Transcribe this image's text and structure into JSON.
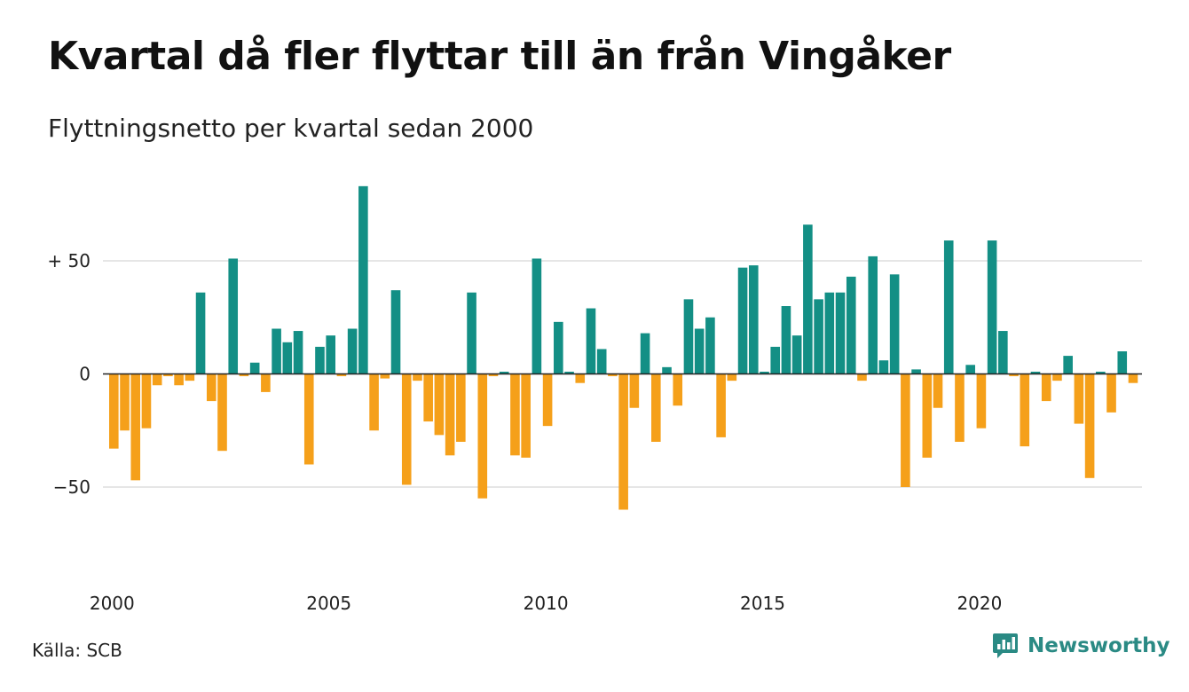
{
  "title": "Kvartal då fler flyttar till än från Vingåker",
  "subtitle": "Flyttningsnetto per kvartal sedan 2000",
  "source": "Källa: SCB",
  "brand": {
    "name": "Newsworthy",
    "icon": "newsworthy-logo-icon"
  },
  "colors": {
    "positive": "#138f85",
    "negative": "#f5a01a",
    "grid": "#dddddd",
    "axis": "#222222"
  },
  "chart_data": {
    "type": "bar",
    "x_start": 2000,
    "periods_per_year": 4,
    "values": [
      -33,
      -25,
      -47,
      -24,
      -5,
      -1,
      -5,
      -3,
      36,
      -12,
      -34,
      51,
      -1,
      5,
      -8,
      20,
      14,
      19,
      -40,
      12,
      17,
      -1,
      20,
      83,
      -25,
      -2,
      37,
      -49,
      -3,
      -21,
      -27,
      -36,
      -30,
      36,
      -55,
      -1,
      1,
      -36,
      -37,
      51,
      -23,
      23,
      1,
      -4,
      29,
      11,
      -1,
      -60,
      -15,
      18,
      -30,
      3,
      -14,
      33,
      20,
      25,
      -28,
      -3,
      47,
      48,
      1,
      12,
      30,
      17,
      66,
      33,
      36,
      36,
      43,
      -3,
      52,
      6,
      44,
      -50,
      2,
      -37,
      -15,
      59,
      -30,
      4,
      -24,
      59,
      19,
      -1,
      -32,
      1,
      -12,
      -3,
      8,
      -22,
      -46,
      1,
      -17,
      10,
      -4
    ],
    "ylim": [
      -60,
      83
    ],
    "yticks": [
      50,
      0,
      -50
    ],
    "ytick_labels": [
      "+ 50",
      "0",
      "−50"
    ],
    "xticks": [
      2000,
      2005,
      2010,
      2015,
      2020
    ],
    "xtick_labels": [
      "2000",
      "2005",
      "2010",
      "2015",
      "2020"
    ],
    "grid": true,
    "legend": "none"
  }
}
